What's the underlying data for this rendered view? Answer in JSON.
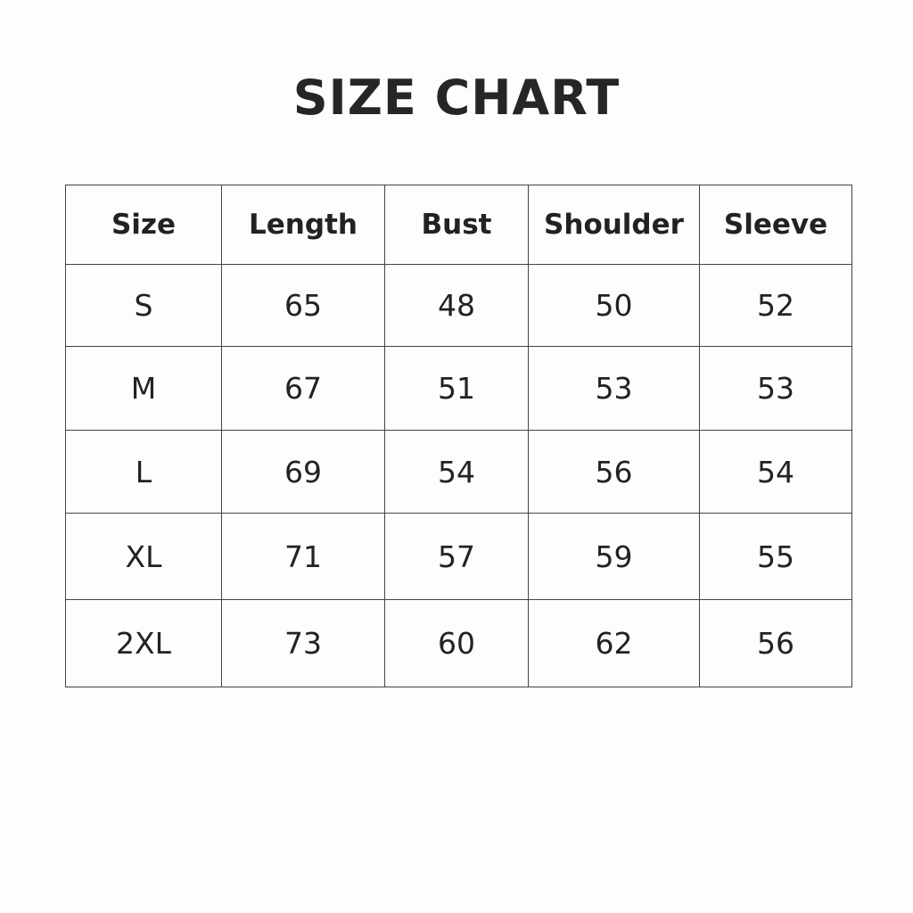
{
  "title": "SIZE CHART",
  "table": {
    "headers": [
      "Size",
      "Length",
      "Bust",
      "Shoulder",
      "Sleeve"
    ],
    "rows": [
      [
        "S",
        "65",
        "48",
        "50",
        "52"
      ],
      [
        "M",
        "67",
        "51",
        "53",
        "53"
      ],
      [
        "L",
        "69",
        "54",
        "56",
        "54"
      ],
      [
        "XL",
        "71",
        "57",
        "59",
        "55"
      ],
      [
        "2XL",
        "73",
        "60",
        "62",
        "56"
      ]
    ]
  }
}
